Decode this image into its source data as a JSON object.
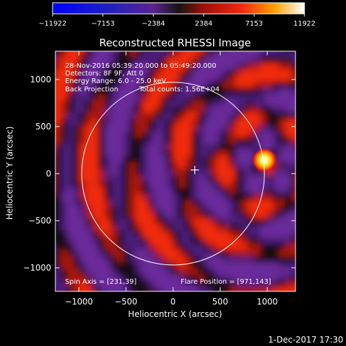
{
  "chart_data": {
    "type": "heatmap",
    "title": "Reconstructed RHESSI Image",
    "xlabel": "Heliocentric X (arcsec)",
    "ylabel": "Heliocentric Y (arcsec)",
    "xlim": [
      -1250,
      1300
    ],
    "ylim": [
      -1250,
      1300
    ],
    "x_ticks": [
      -1000,
      -500,
      0,
      500,
      1000
    ],
    "y_ticks": [
      -1000,
      -500,
      0,
      500,
      1000
    ],
    "colorbar": {
      "min": -11922,
      "max": 11922,
      "tick_values": [
        -11922,
        -7153,
        -2384,
        2384,
        7153,
        11922
      ],
      "tick_labels": [
        "−11922",
        "−7153",
        "−2384",
        "2384",
        "7153",
        "11922"
      ]
    },
    "annotations": [
      "28-Nov-2016 05:39:20.000 to 05:49:20.000",
      "Detectors: 8F 9F, Att 0",
      "Energy Range: 6.0 - 25.0 keV",
      "Back Projection",
      "Total counts: 1.56E+04"
    ],
    "spin_axis_label": "Spin Axis = [231,39]",
    "flare_position_label": "Flare Position = [971,143]",
    "spin_axis": [
      231,
      39
    ],
    "flare_position": [
      971,
      143
    ],
    "solar_radius_arcsec": 970,
    "grid": false
  },
  "footer": {
    "timestamp": "1-Dec-2017 17:30"
  }
}
